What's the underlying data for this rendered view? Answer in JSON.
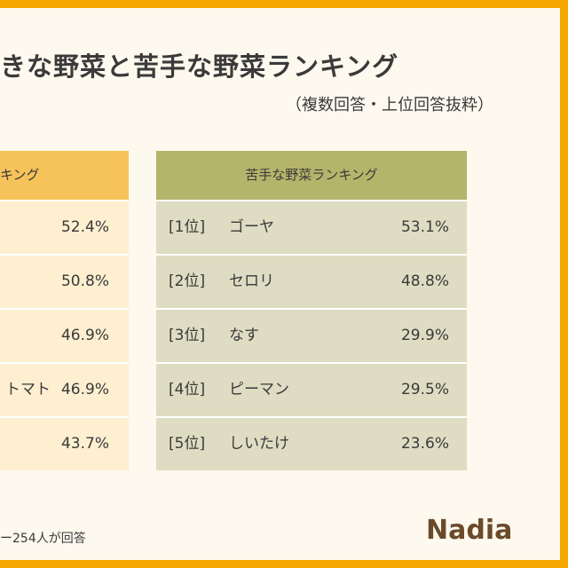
{
  "title": "きな野菜と苦手な野菜ランキング",
  "subtitle": "（複数回答・上位回答抜粋）",
  "left_table": {
    "header": "キング",
    "rows": [
      {
        "value": "52.4%"
      },
      {
        "value": "50.8%"
      },
      {
        "value": "46.9%"
      },
      {
        "name": "トマト",
        "value": "46.9%"
      },
      {
        "value": "43.7%"
      }
    ]
  },
  "right_table": {
    "header": "苦手な野菜ランキング",
    "rows": [
      {
        "rank": "[1位]",
        "name": "ゴーヤ",
        "value": "53.1%"
      },
      {
        "rank": "[2位]",
        "name": "セロリ",
        "value": "48.8%"
      },
      {
        "rank": "[3位]",
        "name": "なす",
        "value": "29.9%"
      },
      {
        "rank": "[4位]",
        "name": "ピーマン",
        "value": "29.5%"
      },
      {
        "rank": "[5位]",
        "name": "しいたけ",
        "value": "23.6%"
      }
    ]
  },
  "footer": "ー254人が回答",
  "logo": "Nadia"
}
